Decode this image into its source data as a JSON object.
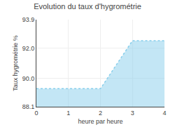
{
  "chart_data": {
    "type": "area",
    "title": "Evolution du taux d'hygrométrie",
    "x_label": "heure par heure",
    "y_label": "Taux hygrométrie %",
    "x": [
      0,
      1,
      2,
      3,
      4
    ],
    "values": [
      89.3,
      89.3,
      89.3,
      92.5,
      92.5
    ],
    "color": "#87CEEB",
    "line_style": "dotted",
    "xlim": [
      0,
      4
    ],
    "ylim": [
      88.1,
      93.9
    ],
    "xticks": [
      0,
      1,
      2,
      3,
      4
    ],
    "yticks": [
      88.1,
      {
        "value": 90,
        "label": "90.0"
      },
      {
        "value": 92,
        "label": "92.0"
      },
      93.9
    ],
    "grid": true
  }
}
